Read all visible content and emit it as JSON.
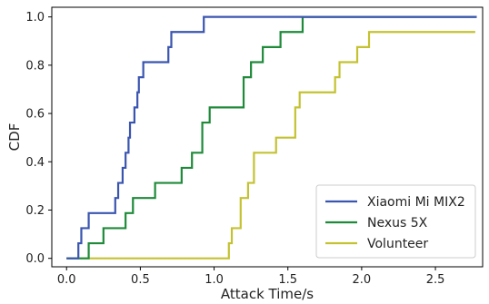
{
  "chart_data": {
    "type": "line",
    "xlabel": "Attack Time/s",
    "ylabel": "CDF",
    "xlim": [
      -0.1,
      2.82
    ],
    "ylim": [
      -0.035,
      1.04
    ],
    "x_ticks": [
      0.0,
      0.5,
      1.0,
      1.5,
      2.0,
      2.5
    ],
    "x_tick_labels": [
      "0.0",
      "0.5",
      "1.0",
      "1.5",
      "2.0",
      "2.5"
    ],
    "y_ticks": [
      0.0,
      0.2,
      0.4,
      0.6,
      0.8,
      1.0
    ],
    "y_tick_labels": [
      "0.0",
      "0.2",
      "0.4",
      "0.6",
      "0.8",
      "1.0"
    ],
    "grid": false,
    "legend_position": "bottom-right",
    "series": [
      {
        "name": "Xiaomi Mi MIX2",
        "color": "#3a55b0",
        "step_x": [
          0.0,
          0.08,
          0.09,
          0.1,
          0.15,
          0.33,
          0.35,
          0.38,
          0.4,
          0.42,
          0.43,
          0.46,
          0.48,
          0.49,
          0.52,
          0.69,
          0.71,
          0.93
        ],
        "step_y": [
          0.0,
          0.0625,
          0.0625,
          0.125,
          0.1875,
          0.25,
          0.3125,
          0.375,
          0.4375,
          0.5,
          0.5625,
          0.625,
          0.6875,
          0.75,
          0.8125,
          0.875,
          0.9375,
          1.0
        ],
        "end_x": 2.78
      },
      {
        "name": "Nexus 5X",
        "color": "#1f8a3a",
        "step_x": [
          0.0,
          0.15,
          0.25,
          0.4,
          0.45,
          0.6,
          0.78,
          0.85,
          0.92,
          0.97,
          1.2,
          1.25,
          1.33,
          1.45,
          1.6
        ],
        "step_y": [
          0.0,
          0.0625,
          0.125,
          0.1875,
          0.25,
          0.3125,
          0.375,
          0.4375,
          0.5625,
          0.625,
          0.75,
          0.8125,
          0.875,
          0.9375,
          1.0
        ],
        "end_x": 2.78
      },
      {
        "name": "Volunteer",
        "color": "#c4c232",
        "step_x": [
          0.0,
          1.1,
          1.12,
          1.18,
          1.23,
          1.27,
          1.42,
          1.55,
          1.58,
          1.82,
          1.85,
          1.97,
          2.05
        ],
        "step_y": [
          0.0,
          0.0625,
          0.125,
          0.25,
          0.3125,
          0.4375,
          0.5,
          0.625,
          0.6875,
          0.75,
          0.8125,
          0.875,
          0.9375
        ],
        "end_x": 2.77
      }
    ]
  }
}
